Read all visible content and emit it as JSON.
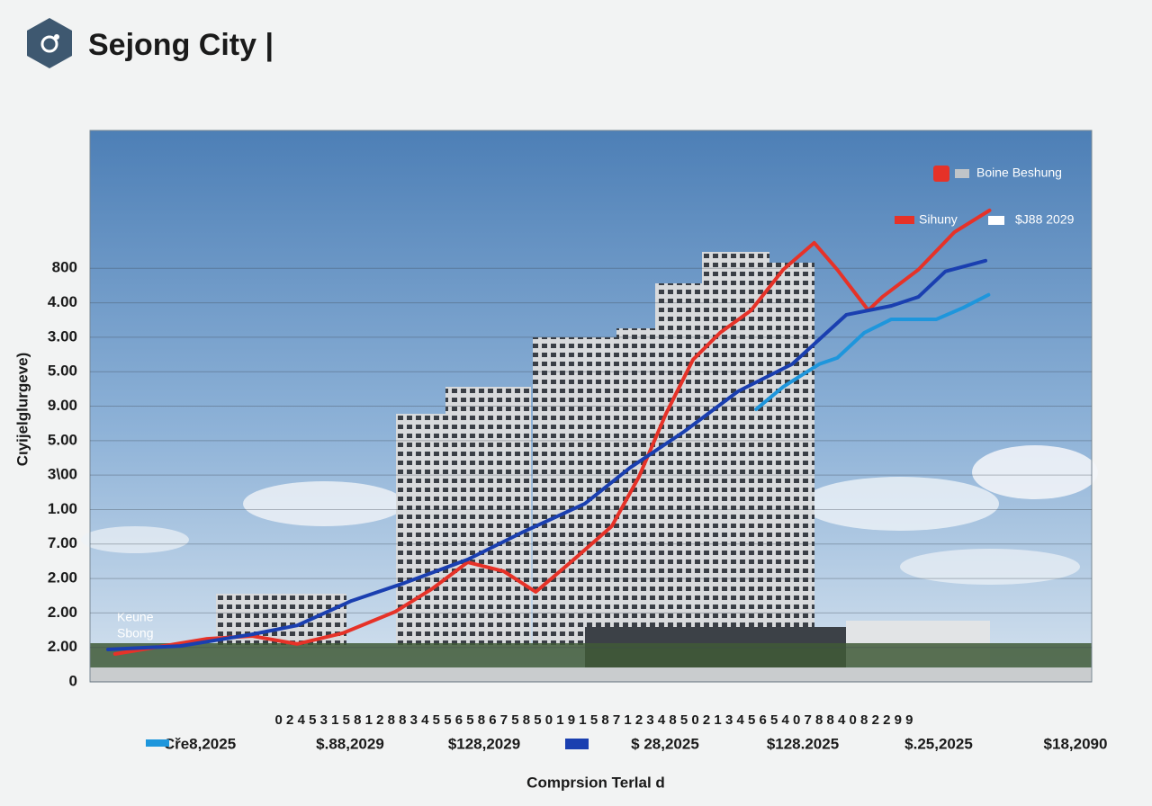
{
  "header": {
    "title": "Sejong City |"
  },
  "chart_data": {
    "type": "line",
    "y_label": "Cιyijelglurgeve)",
    "x_label": "Comprsion Terlal d",
    "x_digit_row": "0 2 4 5 3 1 5 8 1 2 8 8 3 4 5 5 6 5 8 6 7 5 8 5 0 1 9 1 5 8 7 1 2 3 4 8 5 0 2 1 3 4 5 6 5 4 0 7 8 8 4 0 8 2 2 9 9",
    "period_labels": [
      "Cře8,2025",
      "$.88,2029",
      "$128,2029",
      "$ 28,2025",
      "$128.2025",
      "$.25,2025",
      "$18,2090"
    ],
    "annotations": [
      "Keune",
      "Sbong"
    ],
    "legend": [
      {
        "label": "Boine Beshung",
        "color": "#c0c4c8"
      },
      {
        "label": "Sihuny",
        "color": "#e63228"
      },
      {
        "label": "$J88 2029",
        "color": "#ffffff"
      }
    ],
    "xlim": [
      0,
      100
    ],
    "ylim": [
      0,
      16
    ],
    "yticks": [
      {
        "value": 0,
        "label": "0"
      },
      {
        "value": 1,
        "label": "2.00"
      },
      {
        "value": 2,
        "label": "2.00"
      },
      {
        "value": 3,
        "label": "2.00"
      },
      {
        "value": 4,
        "label": "7.00"
      },
      {
        "value": 5,
        "label": "1.00"
      },
      {
        "value": 6,
        "label": "3\\00"
      },
      {
        "value": 7,
        "label": "5.00"
      },
      {
        "value": 8,
        "label": "9.00"
      },
      {
        "value": 9,
        "label": "5.00"
      },
      {
        "value": 10,
        "label": "3.00"
      },
      {
        "value": 11,
        "label": "4.00"
      },
      {
        "value": 12,
        "label": "800"
      }
    ],
    "grid": true,
    "series": [
      {
        "color": "#e63228",
        "x": [
          2.5,
          6.3,
          11.7,
          16.2,
          20.7,
          25.2,
          30.5,
          34.1,
          37.7,
          41.3,
          44.5,
          48.5,
          52.1,
          54.8,
          57.5,
          60.2,
          62.9,
          66.0,
          69.2,
          72.3,
          74.6,
          77.7,
          79.1,
          82.7,
          86.3,
          89.8
        ],
        "values": [
          0.81,
          0.99,
          1.25,
          1.33,
          1.1,
          1.41,
          2.04,
          2.69,
          3.47,
          3.21,
          2.61,
          3.6,
          4.52,
          5.95,
          7.78,
          9.35,
          10.13,
          10.78,
          11.96,
          12.74,
          11.96,
          10.78,
          11.17,
          11.96,
          13.05,
          13.68
        ]
      },
      {
        "color": "#1a3fb0",
        "x": [
          1.8,
          9.0,
          16.2,
          20.7,
          26.1,
          31.4,
          37.7,
          43.1,
          49.4,
          53.9,
          59.3,
          64.7,
          70.1,
          75.5,
          80.0,
          82.7,
          85.4,
          89.4
        ],
        "values": [
          0.94,
          1.04,
          1.38,
          1.64,
          2.35,
          2.87,
          3.55,
          4.33,
          5.17,
          6.21,
          7.26,
          8.43,
          9.22,
          10.65,
          10.91,
          11.17,
          11.91,
          12.22
        ]
      },
      {
        "color": "#1e96dc",
        "x": [
          66.5,
          69.2,
          72.8,
          74.6,
          77.3,
          80.0,
          84.5,
          87.2,
          89.7
        ],
        "values": [
          7.91,
          8.56,
          9.22,
          9.4,
          10.13,
          10.52,
          10.52,
          10.86,
          11.23
        ]
      }
    ]
  }
}
